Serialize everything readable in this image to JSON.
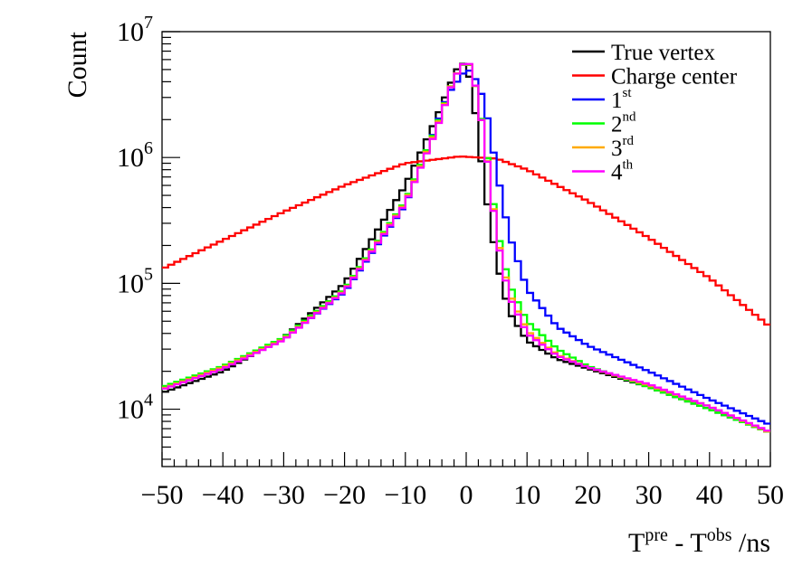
{
  "chart_data": {
    "type": "line",
    "style": "histogram-step",
    "yscale": "log",
    "xlim": [
      -50,
      50
    ],
    "ylim": [
      3500,
      10000000
    ],
    "bin_width": 1,
    "ylabel": "Count",
    "xlabel": {
      "t1": "T",
      "s1": "pre",
      "t2": " - T",
      "s2": "obs",
      "t3": " /ns"
    },
    "x_ticks": [
      -50,
      -40,
      -30,
      -20,
      -10,
      0,
      10,
      20,
      30,
      40,
      50
    ],
    "x_tick_labels": [
      "−50",
      "−40",
      "−30",
      "−20",
      "−10",
      "0",
      "10",
      "20",
      "30",
      "40",
      "50"
    ],
    "y_ticks": [
      {
        "base": "10",
        "exp": "4",
        "value": 10000
      },
      {
        "base": "10",
        "exp": "5",
        "value": 100000
      },
      {
        "base": "10",
        "exp": "6",
        "value": 1000000
      },
      {
        "base": "10",
        "exp": "7",
        "value": 10000000
      }
    ],
    "legend_position": "top-right",
    "series": [
      {
        "name": "True vertex",
        "label_base": "True vertex",
        "label_sup": "",
        "color": "#000000",
        "shape": "peaked",
        "anchors": [
          [
            -50,
            13500
          ],
          [
            -40,
            20000
          ],
          [
            -30,
            37000
          ],
          [
            -20,
            100000
          ],
          [
            -10,
            600000
          ],
          [
            -5,
            2000000
          ],
          [
            -2,
            4500000
          ],
          [
            -1,
            5600000
          ],
          [
            0,
            5500000
          ],
          [
            1,
            3500000
          ],
          [
            3,
            600000
          ],
          [
            5,
            150000
          ],
          [
            7,
            60000
          ],
          [
            10,
            35000
          ],
          [
            15,
            25000
          ],
          [
            20,
            21000
          ],
          [
            30,
            15000
          ],
          [
            40,
            10000
          ],
          [
            50,
            6500
          ]
        ]
      },
      {
        "name": "Charge center",
        "label_base": "Charge center",
        "label_sup": "",
        "color": "#ff0000",
        "shape": "broad",
        "anchors": [
          [
            -50,
            130000
          ],
          [
            -40,
            220000
          ],
          [
            -30,
            370000
          ],
          [
            -20,
            600000
          ],
          [
            -10,
            900000
          ],
          [
            -1,
            1020000
          ],
          [
            5,
            980000
          ],
          [
            10,
            800000
          ],
          [
            20,
            450000
          ],
          [
            30,
            230000
          ],
          [
            40,
            110000
          ],
          [
            50,
            45000
          ]
        ]
      },
      {
        "name": "1st",
        "label_base": "1",
        "label_sup": "st",
        "color": "#0000ff",
        "shape": "peaked",
        "anchors": [
          [
            -50,
            14500
          ],
          [
            -40,
            21000
          ],
          [
            -30,
            36000
          ],
          [
            -20,
            85000
          ],
          [
            -10,
            420000
          ],
          [
            -6,
            1300000
          ],
          [
            -3,
            3200000
          ],
          [
            0,
            5000000
          ],
          [
            1,
            4800000
          ],
          [
            3,
            2800000
          ],
          [
            5,
            800000
          ],
          [
            7,
            250000
          ],
          [
            10,
            90000
          ],
          [
            15,
            45000
          ],
          [
            20,
            32000
          ],
          [
            30,
            20000
          ],
          [
            40,
            12000
          ],
          [
            50,
            7500
          ]
        ]
      },
      {
        "name": "2nd",
        "label_base": "2",
        "label_sup": "nd",
        "color": "#00ff00",
        "shape": "peaked",
        "anchors": [
          [
            -50,
            15000
          ],
          [
            -40,
            22000
          ],
          [
            -30,
            37000
          ],
          [
            -20,
            90000
          ],
          [
            -10,
            450000
          ],
          [
            -5,
            1700000
          ],
          [
            -2,
            4300000
          ],
          [
            0,
            5900000
          ],
          [
            1,
            5000000
          ],
          [
            3,
            1500000
          ],
          [
            5,
            280000
          ],
          [
            7,
            100000
          ],
          [
            10,
            50000
          ],
          [
            15,
            30000
          ],
          [
            20,
            22000
          ],
          [
            30,
            15000
          ],
          [
            40,
            10000
          ],
          [
            50,
            6500
          ]
        ]
      },
      {
        "name": "3rd",
        "label_base": "3",
        "label_sup": "rd",
        "color": "#ffaa00",
        "shape": "peaked",
        "anchors": [
          [
            -50,
            14500
          ],
          [
            -40,
            21500
          ],
          [
            -30,
            36000
          ],
          [
            -20,
            88000
          ],
          [
            -10,
            440000
          ],
          [
            -5,
            1650000
          ],
          [
            -2,
            4300000
          ],
          [
            0,
            5950000
          ],
          [
            1,
            5050000
          ],
          [
            3,
            1450000
          ],
          [
            5,
            250000
          ],
          [
            7,
            85000
          ],
          [
            10,
            42000
          ],
          [
            15,
            27000
          ],
          [
            20,
            21500
          ],
          [
            30,
            15500
          ],
          [
            40,
            10500
          ],
          [
            50,
            6500
          ]
        ]
      },
      {
        "name": "4th",
        "label_base": "4",
        "label_sup": "th",
        "color": "#ff00ff",
        "shape": "peaked",
        "anchors": [
          [
            -50,
            14300
          ],
          [
            -40,
            21000
          ],
          [
            -30,
            35500
          ],
          [
            -20,
            87000
          ],
          [
            -10,
            430000
          ],
          [
            -5,
            1600000
          ],
          [
            -2,
            4250000
          ],
          [
            0,
            6000000
          ],
          [
            1,
            5100000
          ],
          [
            3,
            1450000
          ],
          [
            5,
            240000
          ],
          [
            7,
            80000
          ],
          [
            10,
            40000
          ],
          [
            15,
            26500
          ],
          [
            20,
            21500
          ],
          [
            30,
            15800
          ],
          [
            40,
            10500
          ],
          [
            50,
            6600
          ]
        ]
      }
    ]
  }
}
